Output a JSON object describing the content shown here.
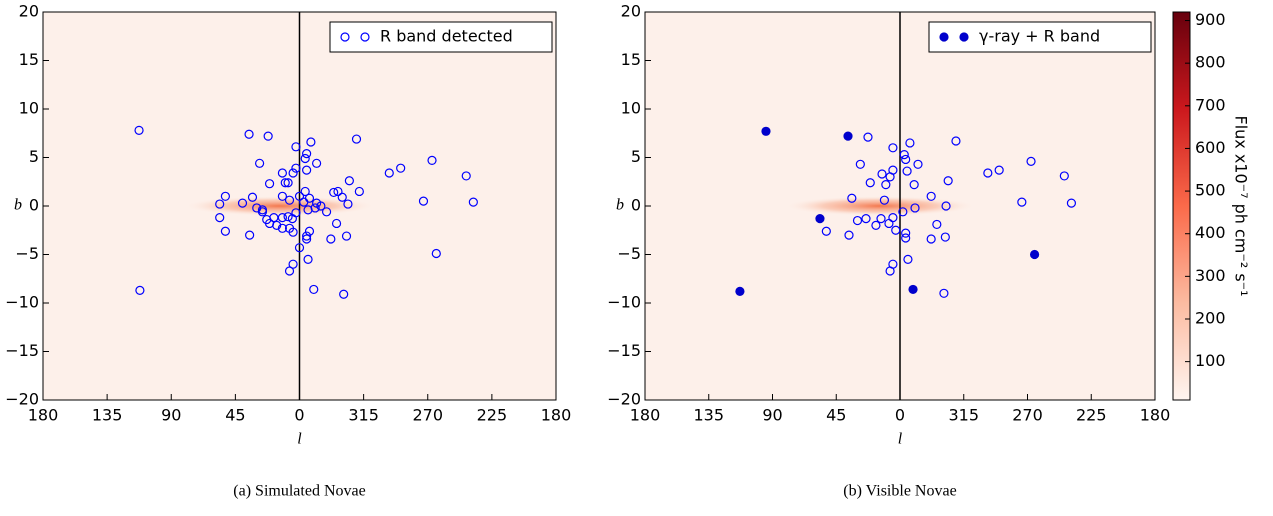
{
  "chart_data": [
    {
      "type": "scatter",
      "caption": "(a) Simulated Novae",
      "xlabel": "l",
      "ylabel": "b",
      "legend": "upper right",
      "xlim": [
        180,
        -180
      ],
      "ylim": [
        -20,
        20
      ],
      "xticks": [
        180,
        135,
        90,
        45,
        0,
        {
          "value": -45,
          "label": "315"
        },
        {
          "value": -90,
          "label": "270"
        },
        {
          "value": -135,
          "label": "225"
        },
        {
          "value": -180,
          "label": "180"
        }
      ],
      "yticks": [
        {
          "value": -20,
          "label": "−20"
        },
        {
          "value": -15,
          "label": "−15"
        },
        {
          "value": -10,
          "label": "−10"
        },
        {
          "value": -5,
          "label": "−5"
        },
        0,
        5,
        10,
        15,
        20
      ],
      "series": [
        {
          "name": "R band detected",
          "color": "#0000ff",
          "marker": "open",
          "x": [
            112.6,
            112,
            35.4,
            22,
            28,
            2.5,
            -8,
            -40,
            -71,
            -63,
            -93,
            -117,
            -122,
            -87,
            -96,
            -31,
            -10,
            7,
            4.5,
            -6,
            0,
            -33,
            -22,
            -26,
            -34,
            -30,
            -27,
            -24,
            -42,
            -35,
            -12,
            -5,
            -4,
            -5,
            2.5,
            4.5,
            8,
            10,
            21,
            12,
            12,
            33,
            40,
            52,
            56,
            56,
            52,
            35,
            30,
            26,
            23,
            21,
            16,
            12,
            8,
            5,
            2.5,
            7,
            0,
            -4,
            -3,
            -7,
            -12,
            -11,
            -6,
            -15,
            -19,
            -7,
            -5,
            -5,
            4.5,
            7,
            12,
            18,
            26
          ],
          "values": [
            7.8,
            -8.7,
            7.4,
            7.2,
            4.4,
            6.1,
            6.6,
            6.9,
            3.9,
            3.4,
            4.7,
            3.1,
            0.4,
            0.5,
            -4.9,
            -9.1,
            -8.6,
            -6.7,
            -6,
            -5.5,
            -4.3,
            -3.1,
            -3.4,
            -1.8,
            0.2,
            0.9,
            1.5,
            1.4,
            1.5,
            2.6,
            4.4,
            5.4,
            4.9,
            3.7,
            3.9,
            3.4,
            2.4,
            2.4,
            2.3,
            3.4,
            1,
            0.9,
            0.3,
            1,
            0.2,
            -1.2,
            -2.6,
            -3,
            -0.2,
            -0.4,
            -1.4,
            -1.8,
            -2,
            -1.2,
            -1.1,
            -1.3,
            -0.7,
            0.6,
            1,
            1.5,
            0.4,
            0.8,
            0.3,
            -0.2,
            -0.4,
            0,
            -0.6,
            -2.6,
            -3.1,
            -3.4,
            -2.7,
            -2.3,
            -2.3,
            -1.2,
            -0.6
          ]
        }
      ]
    },
    {
      "type": "scatter",
      "caption": "(b) Visible Novae",
      "xlabel": "l",
      "ylabel": "b",
      "legend": "upper right",
      "xlim": [
        180,
        -180
      ],
      "ylim": [
        -20,
        20
      ],
      "xticks": [
        180,
        135,
        90,
        45,
        0,
        {
          "value": -45,
          "label": "315"
        },
        {
          "value": -90,
          "label": "270"
        },
        {
          "value": -135,
          "label": "225"
        },
        {
          "value": -180,
          "label": "180"
        }
      ],
      "yticks": [
        {
          "value": -20,
          "label": "−20"
        },
        {
          "value": -15,
          "label": "−15"
        },
        {
          "value": -10,
          "label": "−10"
        },
        {
          "value": -5,
          "label": "−5"
        },
        0,
        5,
        10,
        15,
        20
      ],
      "series": [
        {
          "color": "#0000ff",
          "marker": "open",
          "x": [
            22.6,
            28,
            5,
            -7,
            -39.5,
            -70,
            -62,
            -92.5,
            -116,
            -121,
            -86,
            -31,
            7,
            5,
            -5.6,
            -32,
            -22,
            -26,
            -32.5,
            -22,
            -34,
            -12.7,
            -3,
            -4,
            -5,
            5,
            7,
            10,
            21,
            12.7,
            11,
            34,
            52,
            36,
            30,
            24,
            17,
            13.4,
            7.8,
            5,
            -2,
            -4,
            -4,
            3,
            -10.6,
            -10
          ],
          "values": [
            7.1,
            4.3,
            6,
            6.5,
            6.7,
            3.7,
            3.4,
            4.6,
            3.1,
            0.3,
            0.4,
            -9,
            -6.7,
            -6,
            -5.5,
            -3.2,
            -3.4,
            -1.9,
            0,
            1,
            2.6,
            4.3,
            5.3,
            4.8,
            3.6,
            3.7,
            3,
            2.2,
            2.4,
            3.3,
            0.6,
            0.8,
            -2.6,
            -3,
            -1.5,
            -1.3,
            -2,
            -1.3,
            -1.8,
            -1.2,
            -0.6,
            -2.8,
            -3.3,
            -2.5,
            -0.2,
            2.2
          ]
        },
        {
          "name": "γ-ray + R band",
          "color": "#0000cc",
          "marker": "filled",
          "x": [
            94.6,
            36.7,
            56.5,
            113,
            -9.2,
            -95
          ],
          "values": [
            7.7,
            7.2,
            -1.3,
            -8.8,
            -8.6,
            -5.0
          ]
        }
      ],
      "colorbar": {
        "label": "Flux x10⁻⁷ ph cm⁻² s⁻¹",
        "lim": [
          10,
          920
        ],
        "ticks": [
          100,
          200,
          300,
          400,
          500,
          600,
          700,
          800,
          900
        ],
        "colors": [
          "#fff5f0",
          "#fcbba1",
          "#fb6a4a",
          "#cb181d",
          "#67000d"
        ]
      }
    }
  ]
}
